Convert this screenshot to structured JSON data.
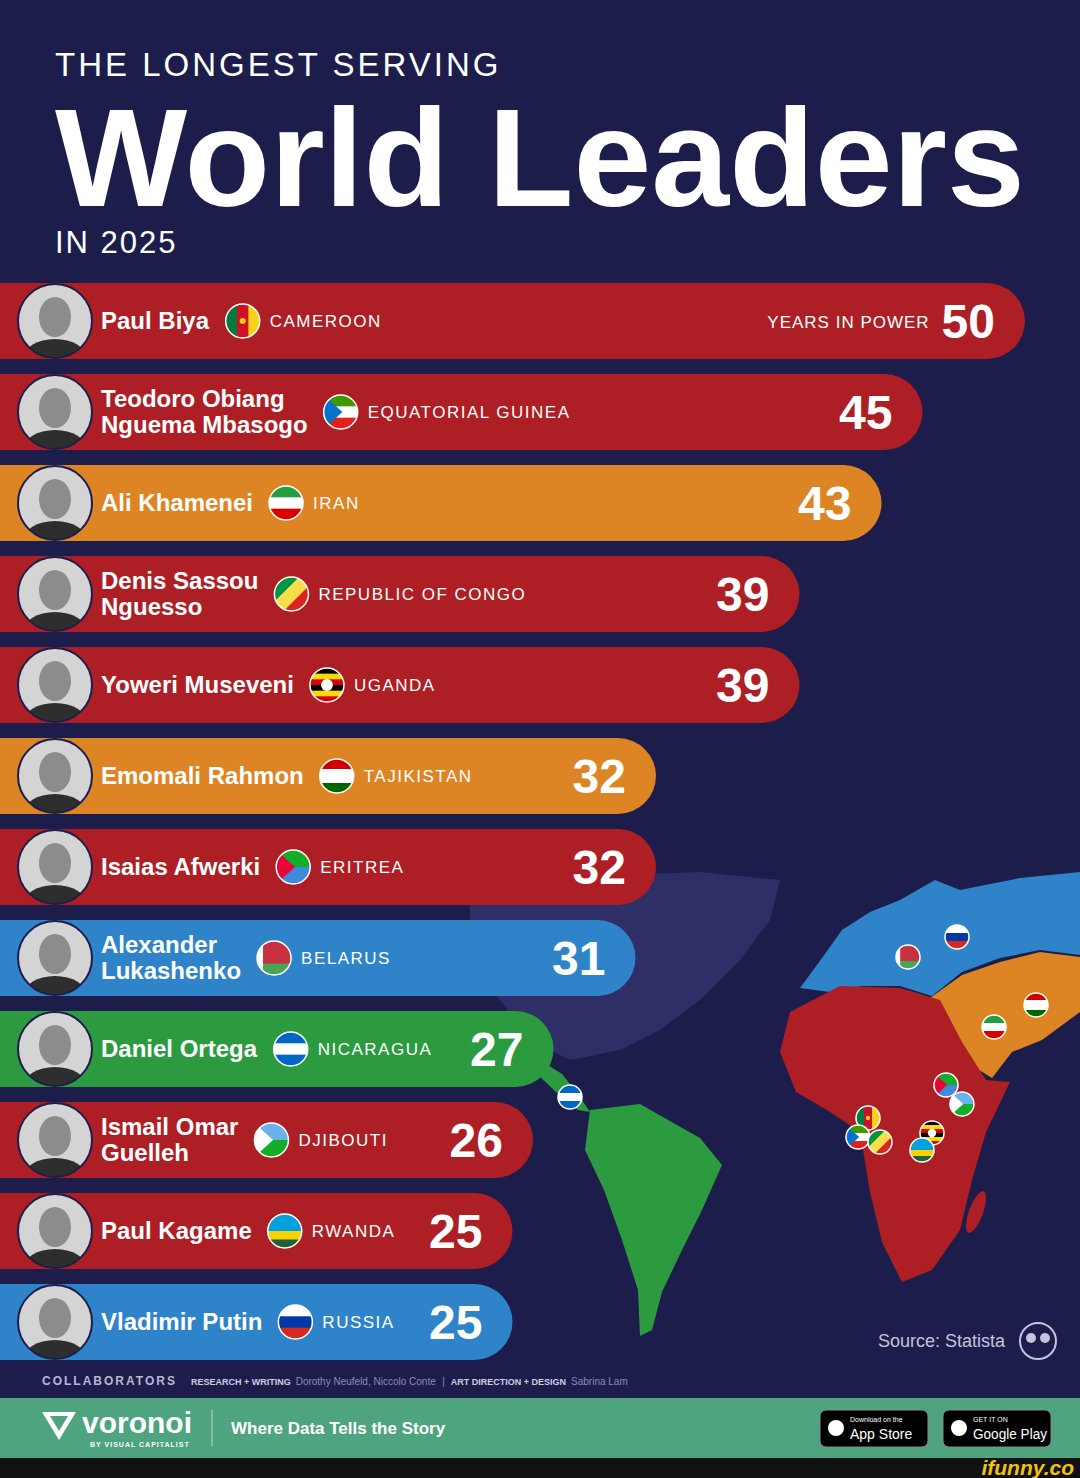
{
  "chart_data": {
    "type": "bar",
    "orientation": "horizontal",
    "supertitle": "THE LONGEST SERVING",
    "title": "World Leaders",
    "subtitle": "IN 2025",
    "categories": [
      "Paul Biya",
      "Teodoro Obiang Nguema Mbasogo",
      "Ali Khamenei",
      "Denis Sassou Nguesso",
      "Yoweri Museveni",
      "Emomali Rahmon",
      "Isaias Afwerki",
      "Alexander Lukashenko",
      "Daniel Ortega",
      "Ismail Omar Guelleh",
      "Paul Kagame",
      "Vladimir Putin"
    ],
    "countries": [
      "CAMEROON",
      "EQUATORIAL GUINEA",
      "IRAN",
      "REPUBLIC OF CONGO",
      "UGANDA",
      "TAJIKISTAN",
      "ERITREA",
      "BELARUS",
      "NICARAGUA",
      "DJIBOUTI",
      "RWANDA",
      "RUSSIA"
    ],
    "values": [
      50,
      45,
      43,
      39,
      39,
      32,
      32,
      31,
      27,
      26,
      25,
      25
    ],
    "colors": [
      "#ad1f25",
      "#ad1f25",
      "#dd8424",
      "#ad1f25",
      "#ad1f25",
      "#dd8424",
      "#ad1f25",
      "#2f84c9",
      "#2c9a3f",
      "#ad1f25",
      "#ad1f25",
      "#2f84c9"
    ],
    "value_label_title": "YEARS IN POWER",
    "data_labels": true,
    "tick_labels": false,
    "xlim": [
      0,
      52
    ],
    "source": "Source: Statista"
  },
  "credits": {
    "heading": "COLLABORATORS",
    "items": [
      {
        "role": "RESEARCH + WRITING",
        "names": "Dorothy Neufeld, Niccolo Conte"
      },
      {
        "role": "ART DIRECTION + DESIGN",
        "names": "Sabrina Lam"
      }
    ],
    "separator": "|"
  },
  "footer": {
    "brand": "voronoi",
    "brand_byline": "BY VISUAL CAPITALIST",
    "tagline": "Where Data Tells the Story",
    "stores": [
      {
        "small": "Download on the",
        "large": "App Store"
      },
      {
        "small": "GET IT ON",
        "large": "Google Play"
      }
    ]
  },
  "watermark": "ifunny.co"
}
